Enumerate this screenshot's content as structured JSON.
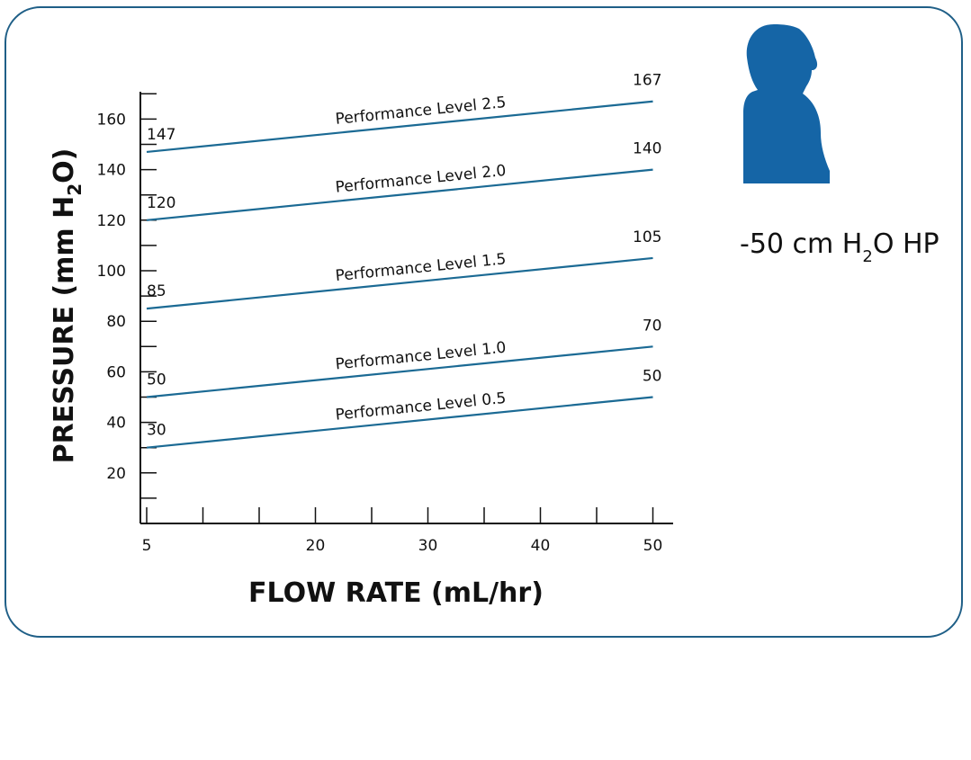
{
  "colors": {
    "frame": "#1f5f87",
    "line": "#1b6a94",
    "person": "#1565a6"
  },
  "person_icon": "person-silhouette-icon",
  "hp_label": {
    "prefix": "-50 cm H",
    "sub": "2",
    "suffix": "O HP"
  },
  "chart_data": {
    "type": "line",
    "xlabel": "FLOW RATE (mL/hr)",
    "ylabel": {
      "prefix": "PRESSURE (mm H",
      "sub": "2",
      "suffix": "O)"
    },
    "x_ticks": [
      5,
      20,
      30,
      40,
      50
    ],
    "x_minor_ticks": [
      10,
      15,
      25,
      35,
      45
    ],
    "y_ticks": [
      20,
      40,
      60,
      80,
      100,
      120,
      140,
      160
    ],
    "xlim": [
      2.5,
      52
    ],
    "ylim": [
      0,
      172
    ],
    "grid": false,
    "series": [
      {
        "name": "Performance Level 2.5",
        "x": [
          5,
          50
        ],
        "y": [
          147,
          167
        ],
        "start_label": "147",
        "end_label": "167"
      },
      {
        "name": "Performance Level 2.0",
        "x": [
          5,
          50
        ],
        "y": [
          120,
          140
        ],
        "start_label": "120",
        "end_label": "140"
      },
      {
        "name": "Performance Level 1.5",
        "x": [
          5,
          50
        ],
        "y": [
          85,
          105
        ],
        "start_label": "85",
        "end_label": "105"
      },
      {
        "name": "Performance Level 1.0",
        "x": [
          5,
          50
        ],
        "y": [
          50,
          70
        ],
        "start_label": "50",
        "end_label": "70"
      },
      {
        "name": "Performance Level 0.5",
        "x": [
          5,
          50
        ],
        "y": [
          30,
          50
        ],
        "start_label": "30",
        "end_label": "50"
      }
    ]
  }
}
